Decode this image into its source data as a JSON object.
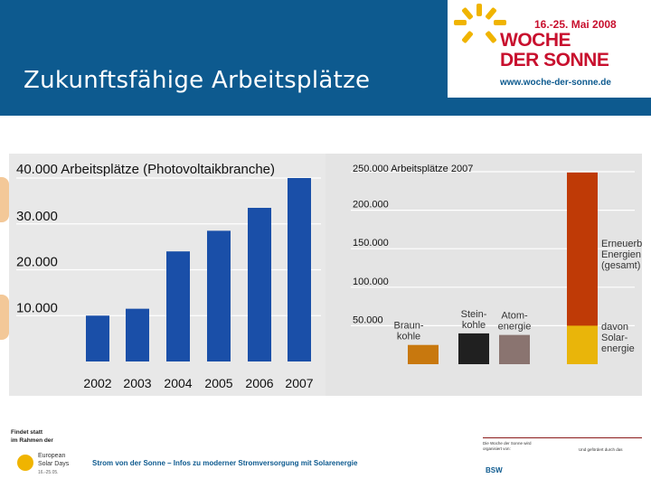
{
  "header": {
    "title": "Zukunftsfähige Arbeitsplätze"
  },
  "logo": {
    "date": "16.-25. Mai 2008",
    "line1": "WOCHE",
    "line2": "DER SONNE",
    "url": "www.woche-der-sonne.de"
  },
  "colors": {
    "header": "#0d5a8f",
    "pv_bar": "#1a4fa8",
    "braun": "#c8780e",
    "stein": "#202020",
    "atom": "#8a7470",
    "erneuerbar": "#bf3a06",
    "solar": "#e9b50a"
  },
  "chart_data": [
    {
      "type": "bar",
      "title": "40.000 Arbeitsplätze (Photovoltaikbranche)",
      "categories": [
        "2002",
        "2003",
        "2004",
        "2005",
        "2006",
        "2007"
      ],
      "values": [
        10000,
        11500,
        24000,
        28500,
        33500,
        40000
      ],
      "ytick_labels": [
        "10.000",
        "20.000",
        "30.000"
      ],
      "yticks": [
        10000,
        20000,
        30000
      ],
      "ylim": [
        0,
        40000
      ],
      "xlabel": "",
      "ylabel": ""
    },
    {
      "type": "bar",
      "title": "250.000 Arbeitsplätze 2007",
      "categories": [
        "Braun-kohle",
        "Stein-kohle",
        "Atom-energie",
        "Erneuerbare Energien (gesamt)"
      ],
      "bar_labels": [
        [
          "Braun-",
          "kohle"
        ],
        [
          "Stein-",
          "kohle"
        ],
        [
          "Atom-",
          "energie"
        ],
        [
          "Erneuerbare",
          "Energien",
          "(gesamt)"
        ]
      ],
      "series": [
        {
          "name": "Arbeitsplätze",
          "values": [
            25000,
            40000,
            38000,
            249000
          ]
        },
        {
          "name": "davon Solarenergie",
          "values": [
            0,
            0,
            0,
            50000
          ]
        }
      ],
      "solar_label": [
        "davon",
        "Solar-",
        "energie"
      ],
      "ytick_labels": [
        "50.000",
        "100.000",
        "150.000",
        "200.000"
      ],
      "yticks": [
        50000,
        100000,
        150000,
        200000
      ],
      "ylim": [
        0,
        250000
      ],
      "xlabel": "",
      "ylabel": ""
    }
  ],
  "footer": {
    "small_line1": "Findet statt",
    "small_line2": "im Rahmen der",
    "esd_line1": "European",
    "esd_line2": "Solar Days",
    "esd_line3": "16.-25.05.",
    "main_text": "Strom von der Sonne – Infos zu moderner Stromversorgung mit Solarenergie",
    "bsw_note": "Die Woche der Sonne wird organisiert von:",
    "bsw_logo": "BSW",
    "ministry_note": "Und gefördert durch das"
  }
}
